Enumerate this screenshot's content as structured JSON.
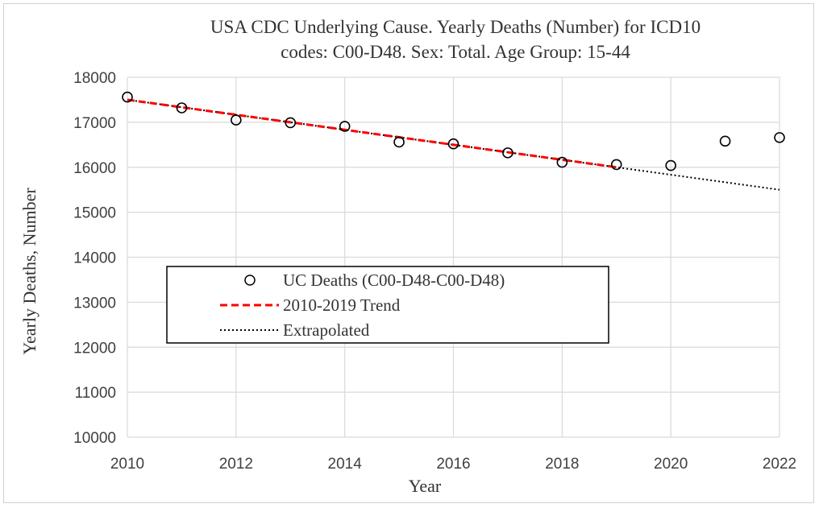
{
  "chart_data": {
    "type": "scatter",
    "title_line1": "USA CDC Underlying Cause. Yearly Deaths (Number) for ICD10",
    "title_line2": "codes: C00-D48. Sex: Total. Age Group: 15-44",
    "xlabel": "Year",
    "ylabel": "Yearly Deaths, Number",
    "xlim": [
      2010,
      2022
    ],
    "ylim": [
      10000,
      18000
    ],
    "x_ticks": [
      2010,
      2012,
      2014,
      2016,
      2018,
      2020,
      2022
    ],
    "y_ticks": [
      10000,
      11000,
      12000,
      13000,
      14000,
      15000,
      16000,
      17000,
      18000
    ],
    "grid": true,
    "legend_position": "center-left",
    "series": [
      {
        "name": "UC Deaths (C00-D48-C00-D48)",
        "kind": "markers",
        "marker": "open-circle",
        "color": "#000000",
        "x": [
          2010,
          2011,
          2012,
          2013,
          2014,
          2015,
          2016,
          2017,
          2018,
          2019,
          2020,
          2021,
          2022
        ],
        "y": [
          17560,
          17320,
          17050,
          16990,
          16910,
          16560,
          16520,
          16320,
          16110,
          16060,
          16040,
          16580,
          16660
        ]
      },
      {
        "name": "2010-2019 Trend",
        "kind": "line",
        "style": "dashed",
        "color": "#ff0000",
        "x": [
          2010,
          2019
        ],
        "y": [
          17500,
          16000
        ]
      },
      {
        "name": "Extrapolated",
        "kind": "line",
        "style": "dotted",
        "color": "#000000",
        "x": [
          2010,
          2022
        ],
        "y": [
          17500,
          15500
        ]
      }
    ]
  }
}
